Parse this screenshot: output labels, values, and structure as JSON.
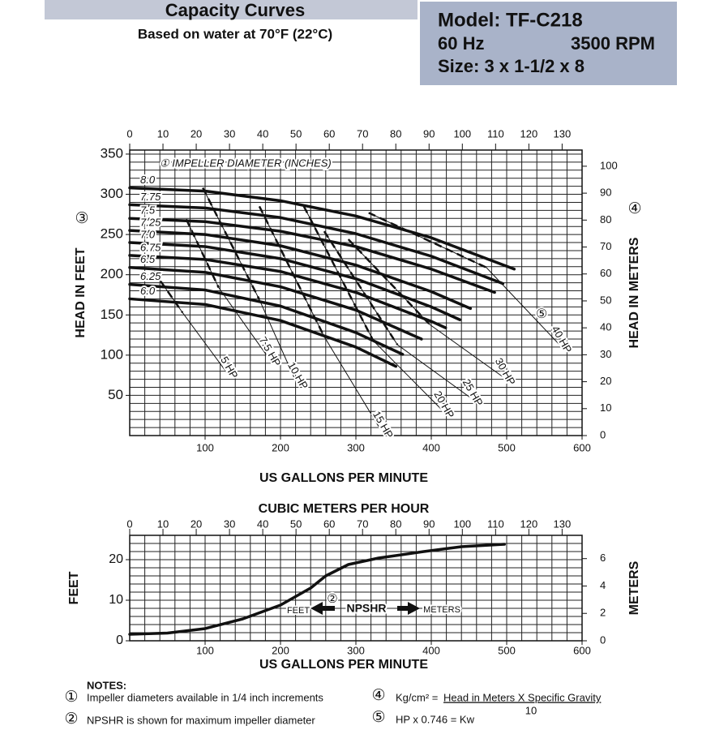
{
  "header": {
    "title": "Capacity Curves",
    "subtitle": "Based on water at 70°F (22°C)",
    "model": "Model: TF-C218",
    "frequency": "60 Hz",
    "speed": "3500 RPM",
    "size": "Size: 3 x 1-1/2 x 8"
  },
  "chart_data": [
    {
      "type": "line",
      "xlabel": "US GALLONS PER MINUTE",
      "ylabel": "HEAD IN FEET",
      "y2label": "HEAD IN METERS",
      "xlim": [
        0,
        600
      ],
      "xticks": [
        100,
        200,
        300,
        400,
        500,
        600
      ],
      "x2lim": [
        0,
        136
      ],
      "x2ticks": [
        0,
        10,
        20,
        30,
        40,
        50,
        60,
        70,
        80,
        90,
        100,
        110,
        120,
        130
      ],
      "ylim": [
        0,
        355
      ],
      "yticks": [
        50,
        100,
        150,
        200,
        250,
        300,
        350
      ],
      "y2lim": [
        0,
        106
      ],
      "y2ticks": [
        0,
        10,
        20,
        30,
        40,
        50,
        60,
        70,
        80,
        90,
        100
      ],
      "grid": true,
      "xgrid_step": 20,
      "ygrid_step": 10,
      "series": [
        {
          "name": "8.0",
          "color": "#111111",
          "x": [
            0,
            100,
            200,
            300,
            400,
            510
          ],
          "values": [
            308,
            304,
            292,
            273,
            246,
            207
          ]
        },
        {
          "name": "7.75",
          "color": "#111111",
          "x": [
            0,
            100,
            200,
            300,
            400,
            495
          ],
          "values": [
            287,
            283,
            271,
            251,
            223,
            189
          ]
        },
        {
          "name": "7.5",
          "color": "#111111",
          "x": [
            0,
            100,
            200,
            300,
            400,
            484
          ],
          "values": [
            270,
            266,
            254,
            235,
            207,
            178
          ]
        },
        {
          "name": "7.25",
          "color": "#111111",
          "x": [
            0,
            100,
            200,
            300,
            400,
            452
          ],
          "values": [
            255,
            250,
            236,
            212,
            179,
            158
          ]
        },
        {
          "name": "7.0",
          "color": "#111111",
          "x": [
            0,
            100,
            200,
            300,
            400,
            438
          ],
          "values": [
            240,
            235,
            220,
            195,
            160,
            144
          ]
        },
        {
          "name": "6.75",
          "color": "#111111",
          "x": [
            0,
            100,
            200,
            300,
            400,
            419
          ],
          "values": [
            224,
            219,
            204,
            178,
            142,
            134
          ]
        },
        {
          "name": "6.5",
          "color": "#111111",
          "x": [
            0,
            100,
            200,
            300,
            387
          ],
          "values": [
            209,
            203,
            185,
            156,
            120
          ]
        },
        {
          "name": "6.25",
          "color": "#111111",
          "x": [
            0,
            100,
            200,
            300,
            362
          ],
          "values": [
            188,
            181,
            161,
            128,
            101
          ]
        },
        {
          "name": "6.0",
          "color": "#111111",
          "x": [
            0,
            100,
            200,
            300,
            353
          ],
          "values": [
            170,
            163,
            143,
            110,
            86
          ]
        }
      ],
      "hp_lines": [
        {
          "name": "5 HP",
          "x": [
            32,
            70,
            129
          ],
          "values": [
            204,
            153,
            78
          ]
        },
        {
          "name": "7.5 HP",
          "x": [
            75,
            118,
            183
          ],
          "values": [
            269,
            184,
            98
          ]
        },
        {
          "name": "10 HP",
          "x": [
            97,
            172,
            220
          ],
          "values": [
            308,
            169,
            68
          ]
        },
        {
          "name": "15 HP",
          "x": [
            172,
            258,
            333
          ],
          "values": [
            285,
            123,
            7
          ]
        },
        {
          "name": "20 HP",
          "x": [
            231,
            323,
            414
          ],
          "values": [
            285,
            118,
            32
          ]
        },
        {
          "name": "25 HP",
          "x": [
            258,
            355,
            452
          ],
          "values": [
            254,
            113,
            47
          ]
        },
        {
          "name": "30 HP",
          "x": [
            290,
            398,
            495
          ],
          "values": [
            244,
            138,
            73
          ]
        },
        {
          "name": "40 HP",
          "x": [
            317,
            473,
            570
          ],
          "values": [
            277,
            209,
            113
          ]
        }
      ],
      "annotations": [
        "① IMPELLER DIAMETER (INCHES)",
        "⑤",
        "③",
        "④"
      ]
    },
    {
      "type": "line",
      "x2label": "CUBIC METERS PER HOUR",
      "xlabel": "US GALLONS PER MINUTE",
      "ylabel": "FEET",
      "y2label": "METERS",
      "xlim": [
        0,
        600
      ],
      "xticks": [
        100,
        200,
        300,
        400,
        500,
        600
      ],
      "x2lim": [
        0,
        136
      ],
      "x2ticks": [
        0,
        10,
        20,
        30,
        40,
        50,
        60,
        70,
        80,
        90,
        100,
        110,
        120,
        130
      ],
      "ylim": [
        0,
        26
      ],
      "yticks": [
        0,
        10,
        20
      ],
      "y2lim": [
        0,
        7.7
      ],
      "y2ticks": [
        0,
        2,
        4,
        6
      ],
      "grid": true,
      "xgrid_step": 20,
      "ygrid_step": 2,
      "series": [
        {
          "color": "#111111",
          "x": [
            0,
            50,
            100,
            150,
            200,
            240,
            260,
            290,
            330,
            390,
            440,
            497
          ],
          "values": [
            1.6,
            1.9,
            3,
            5.4,
            8.8,
            13,
            16,
            18.8,
            20.4,
            22,
            23.2,
            23.8
          ]
        }
      ],
      "annotations": [
        "FEET",
        "②",
        "NPSHR",
        "METERS"
      ]
    }
  ],
  "notes": {
    "title": "NOTES:",
    "items": [
      {
        "marker": "①",
        "text": "Impeller diameters available in 1/4 inch increments"
      },
      {
        "marker": "②",
        "text": "NPSHR is shown for maximum impeller diameter"
      },
      {
        "marker": "④",
        "text": "Kg/cm² =",
        "numerator": "Head in Meters X Specific Gravity",
        "denominator": 10
      },
      {
        "marker": "⑤",
        "text": "HP x 0.746 = Kw"
      }
    ]
  }
}
